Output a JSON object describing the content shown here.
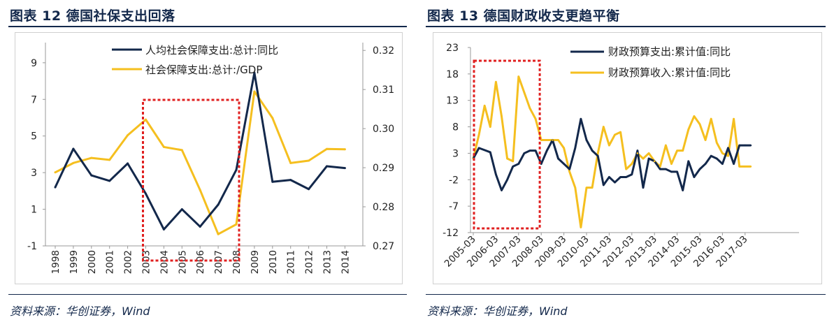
{
  "left": {
    "title": "图表 12   德国社保支出回落",
    "source": "资料来源：华创证券，Wind"
  },
  "right": {
    "title": "图表 13   德国财政收支更趋平衡",
    "source": "资料来源：华创证券，Wind"
  },
  "colors": {
    "navy": "#13284b",
    "gold": "#f5bf1f",
    "red": "#e02020",
    "axis": "#999999"
  },
  "chart_data": [
    {
      "type": "line",
      "title": "图表 12 德国社保支出回落",
      "categories": [
        "1998",
        "1999",
        "2000",
        "2001",
        "2002",
        "2003",
        "2004",
        "2005",
        "2006",
        "2007",
        "2008",
        "2009",
        "2010",
        "2011",
        "2012",
        "2013",
        "2014"
      ],
      "series": [
        {
          "name": "人均社会保障支出:总计:同比",
          "axis": "left",
          "values": [
            2.2,
            4.3,
            2.85,
            2.55,
            3.5,
            1.85,
            -0.1,
            1.0,
            0.05,
            1.25,
            3.15,
            8.45,
            2.5,
            2.6,
            2.1,
            3.35,
            3.25
          ]
        },
        {
          "name": "社会保障支出:总计:/GDP",
          "axis": "right",
          "values": [
            0.2888,
            0.2912,
            0.2925,
            0.292,
            0.2983,
            0.3023,
            0.2953,
            0.2945,
            0.2843,
            0.273,
            0.2755,
            0.3095,
            0.3027,
            0.2912,
            0.2918,
            0.2948,
            0.2947
          ]
        }
      ],
      "y_left": {
        "ticks": [
          -1,
          1,
          3,
          5,
          7,
          9
        ],
        "range": [
          -1,
          10.1
        ]
      },
      "y_right": {
        "ticks": [
          "0.27",
          "0.28",
          "0.29",
          "0.30",
          "0.31",
          "0.32"
        ],
        "range": [
          0.27,
          0.322
        ]
      },
      "highlight": {
        "from_category": "2003",
        "to_category": "2008"
      },
      "legend": "top-center"
    },
    {
      "type": "line",
      "title": "图表 13 德国财政收支更趋平衡",
      "x_labels": [
        "2005-03",
        "2006-03",
        "2007-03",
        "2008-03",
        "2009-03",
        "2010-03",
        "2011-03",
        "2012-03",
        "2013-03",
        "2014-03",
        "2015-03",
        "2016-03",
        "2017-03"
      ],
      "period_count": 50,
      "series": [
        {
          "name": "财政预算支出:累计值:同比",
          "values": [
            2,
            4,
            3.6,
            3.2,
            -1,
            -4,
            -2,
            0.5,
            1,
            3,
            3.5,
            3.5,
            1,
            3.5,
            5.5,
            2,
            1,
            0,
            4,
            9.5,
            5.5,
            3.5,
            2.5,
            -3,
            -1.5,
            -2.5,
            -1.5,
            -1.5,
            -1,
            3.5,
            -3.5,
            2,
            1.5,
            0,
            0,
            -0.5,
            -0.5,
            -4,
            1.5,
            -1.5,
            0,
            1,
            2.5,
            2,
            1,
            4,
            1,
            4.5,
            4.5,
            4.5
          ]
        },
        {
          "name": "财政预算收入:累计值:同比",
          "values": [
            2,
            6.5,
            12,
            8,
            16.5,
            10,
            2,
            1.5,
            17.5,
            14.5,
            11.5,
            9.5,
            5.5,
            5.5,
            5.5,
            5.5,
            4,
            -0.5,
            -3.5,
            -11,
            -3.5,
            -3.5,
            3,
            8,
            4.5,
            6.5,
            7,
            0,
            1,
            3,
            2,
            3,
            1.5,
            0.5,
            4.5,
            1,
            3.5,
            3.5,
            7.5,
            10,
            8.5,
            5.5,
            9.5,
            5,
            3,
            2.5,
            9.5,
            0.5,
            0.5,
            0.5
          ]
        }
      ],
      "y_ticks": [
        -12,
        -7,
        -2,
        3,
        8,
        13,
        18,
        23
      ],
      "y_range": [
        -12,
        23
      ],
      "highlight": {
        "from_period": 0,
        "to_period": 11
      },
      "legend": "top-center"
    }
  ]
}
